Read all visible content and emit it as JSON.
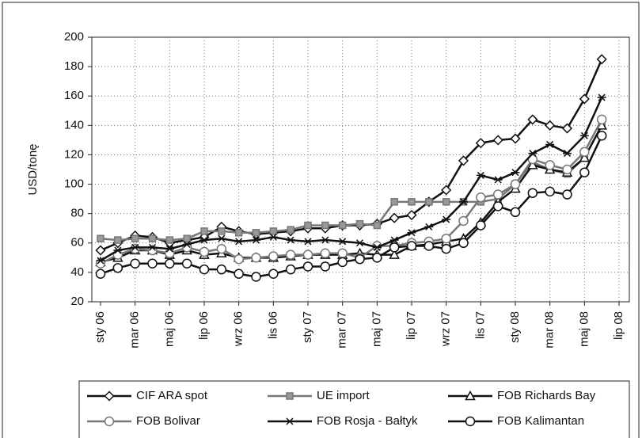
{
  "chart_data": {
    "type": "line",
    "y_label": "USD/tonę",
    "categories": [
      "sty 06",
      null,
      "mar 06",
      null,
      "maj 06",
      null,
      "lip 06",
      null,
      "wrz 06",
      null,
      "lis 06",
      null,
      "sty 07",
      null,
      "mar 07",
      null,
      "maj 07",
      null,
      "lip 07",
      null,
      "wrz 07",
      null,
      "lis 07",
      null,
      "sty 08",
      null,
      "mar 08",
      null,
      "maj 08",
      null,
      "lip 08"
    ],
    "ylim": [
      20,
      200
    ],
    "yticks": [
      20,
      40,
      60,
      80,
      100,
      120,
      140,
      160,
      180,
      200
    ],
    "grid": true,
    "series": [
      {
        "name": "CIF ARA spot",
        "color": "#111111",
        "marker": "diamond",
        "values": [
          55,
          60,
          65,
          64,
          60,
          62,
          64,
          71,
          68,
          66,
          67,
          68,
          70,
          70,
          72,
          72,
          73,
          77,
          79,
          88,
          96,
          116,
          128,
          130,
          131,
          144,
          140,
          138,
          158,
          185,
          null
        ]
      },
      {
        "name": "UE import",
        "color": "#777777",
        "marker": "square",
        "values": [
          63,
          62,
          63,
          63,
          62,
          63,
          68,
          68,
          67,
          67,
          68,
          69,
          72,
          72,
          72,
          73,
          72,
          88,
          88,
          88,
          88,
          88,
          88,
          90,
          100,
          115,
          110,
          107,
          118,
          140,
          null
        ]
      },
      {
        "name": "FOB Richards Bay",
        "color": "#111111",
        "marker": "triangle",
        "values": [
          47,
          50,
          55,
          55,
          52,
          55,
          52,
          53,
          50,
          50,
          50,
          51,
          52,
          52,
          52,
          53,
          52,
          52,
          58,
          59,
          61,
          63,
          74,
          88,
          97,
          113,
          110,
          108,
          118,
          140,
          null
        ]
      },
      {
        "name": "FOB Bolivar",
        "color": "#777777",
        "marker": "circle",
        "values": [
          46,
          52,
          56,
          55,
          53,
          57,
          54,
          56,
          49,
          50,
          51,
          52,
          52,
          53,
          53,
          50,
          58,
          58,
          60,
          61,
          63,
          75,
          91,
          93,
          100,
          117,
          113,
          110,
          122,
          144,
          null
        ]
      },
      {
        "name": "FOB Rosja - Bałtyk",
        "color": "#111111",
        "marker": "star",
        "values": [
          48,
          55,
          57,
          57,
          56,
          59,
          62,
          63,
          61,
          62,
          64,
          62,
          61,
          62,
          61,
          60,
          57,
          62,
          67,
          71,
          76,
          88,
          106,
          103,
          108,
          121,
          127,
          121,
          133,
          159,
          null
        ]
      },
      {
        "name": "FOB Kalimantan",
        "color": "#111111",
        "marker": "circle",
        "values": [
          39,
          43,
          46,
          46,
          46,
          46,
          42,
          42,
          39,
          37,
          39,
          42,
          44,
          44,
          47,
          49,
          50,
          57,
          58,
          58,
          56,
          60,
          72,
          85,
          81,
          94,
          95,
          93,
          108,
          133,
          null
        ]
      }
    ]
  }
}
